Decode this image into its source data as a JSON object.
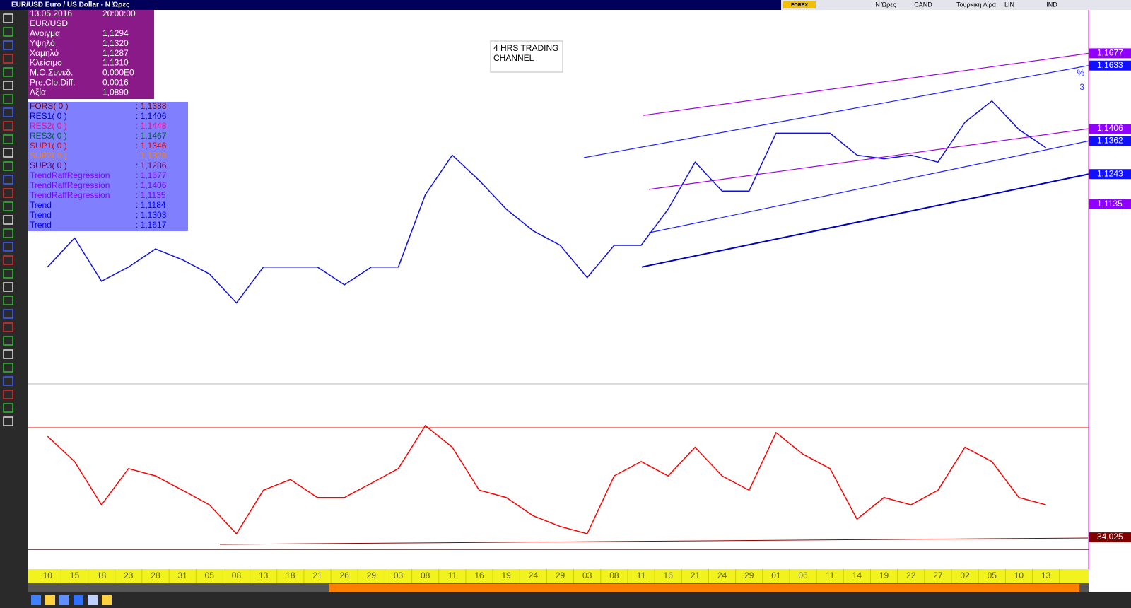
{
  "window": {
    "title": "EUR/USD Euro / US Dollar - Ν Ώρες",
    "logo": "FOREX",
    "toolbar": [
      "Ν Ώρες",
      "CAND",
      "Τουρκική Λίρα",
      "LIN",
      "IND"
    ]
  },
  "info_panel": {
    "date": "13.05.2016",
    "time": "20:00:00",
    "symbol": "EUR/USD",
    "rows": [
      [
        "Ανοιγμα",
        "1,1294"
      ],
      [
        "Υψηλό",
        "1,1320"
      ],
      [
        "Χαμηλό",
        "1,1287"
      ],
      [
        "Κλείσιμο",
        "1,1310"
      ],
      [
        "Μ.Ο.Συνεδ.",
        "0,000E0"
      ],
      [
        "Pre.Clo.Diff.",
        "0,0016"
      ],
      [
        "Αξία",
        "1,0890"
      ]
    ]
  },
  "indicator_panel": {
    "rows": [
      {
        "name": "FORS( 0 )",
        "value": ": 1,1388",
        "color": "#800000"
      },
      {
        "name": "RES1( 0 )",
        "value": ": 1,1406",
        "color": "#0000c0"
      },
      {
        "name": "RES2( 0 )",
        "value": ": 1,1448",
        "color": "#ff0090"
      },
      {
        "name": "RES3( 0 )",
        "value": ": 1,1467",
        "color": "#006030"
      },
      {
        "name": "SUP1( 0 )",
        "value": ": 1,1346",
        "color": "#e00000"
      },
      {
        "name": "SUP2( 0 )",
        "value": ": 1,1328",
        "color": "#ff8000"
      },
      {
        "name": "SUP3( 0 )",
        "value": ": 1,1286",
        "color": "#600060"
      },
      {
        "name": "TrendRaffRegression",
        "value": ": 1,1677",
        "color": "#8000ff"
      },
      {
        "name": "TrendRaffRegression",
        "value": ": 1,1406",
        "color": "#8000ff"
      },
      {
        "name": "TrendRaffRegression",
        "value": ": 1,1135",
        "color": "#8000ff"
      },
      {
        "name": "Trend",
        "value": ": 1,1184",
        "color": "#0000ff"
      },
      {
        "name": "Trend",
        "value": ": 1,1303",
        "color": "#0000ff"
      },
      {
        "name": "Trend",
        "value": ": 1,1617",
        "color": "#0000ff"
      }
    ]
  },
  "annotation": [
    "4 HRS TRADING",
    "CHANNEL"
  ],
  "side_marks": [
    "%",
    "3"
  ],
  "chart_data": [
    {
      "type": "line",
      "color": "#1010e0",
      "categories": [
        "10",
        "15",
        "18",
        "23",
        "28",
        "31",
        "05",
        "08",
        "13",
        "18",
        "21",
        "26",
        "29",
        "03",
        "08",
        "11",
        "16",
        "19",
        "24",
        "29",
        "03",
        "08",
        "11",
        "16",
        "21",
        "24",
        "29",
        "01",
        "06",
        "11",
        "14",
        "19",
        "22",
        "27",
        "02",
        "05",
        "10",
        "13"
      ],
      "values": [
        1.0909,
        1.1013,
        1.0858,
        1.0909,
        1.0974,
        1.0935,
        1.0884,
        1.078,
        1.0909,
        1.0909,
        1.0909,
        1.0845,
        1.0909,
        1.0909,
        1.1169,
        1.1311,
        1.122,
        1.1117,
        1.1039,
        1.0987,
        1.0871,
        1.0987,
        1.0987,
        1.1117,
        1.1286,
        1.1182,
        1.1182,
        1.139,
        1.139,
        1.139,
        1.1311,
        1.1298,
        1.1311,
        1.1286,
        1.1429,
        1.1506,
        1.1403,
        1.1338
      ],
      "ylim": [
        1.0489,
        1.1833
      ],
      "channel_lines": [
        {
          "color": "#a000e0",
          "values": [
            1.1454,
            1.1677
          ]
        },
        {
          "color": "#2020ff",
          "values": [
            1.1302,
            1.1633
          ]
        },
        {
          "color": "#a000e0",
          "values": [
            1.1188,
            1.1406
          ]
        },
        {
          "color": "#2020ff",
          "values": [
            1.1032,
            1.1362
          ]
        },
        {
          "color": "#0000c0",
          "values": [
            1.0909,
            1.1243
          ]
        }
      ],
      "price_labels": [
        {
          "value": 1.1677,
          "label": "1,1677",
          "color": "#9000ff"
        },
        {
          "value": 1.1633,
          "label": "1,1633",
          "color": "#1010ff"
        },
        {
          "value": 1.1406,
          "label": "1,1406",
          "color": "#9000ff"
        },
        {
          "value": 1.1362,
          "label": "1,1362",
          "color": "#1010ff"
        },
        {
          "value": 1.1243,
          "label": "1,1243",
          "color": "#1010ff"
        },
        {
          "value": 1.1135,
          "label": "1,1135",
          "color": "#9000ff"
        }
      ]
    },
    {
      "type": "line",
      "color": "#ff0000",
      "values": [
        67.2,
        58.9,
        44.7,
        56.6,
        54.2,
        49.5,
        44.7,
        35.2,
        49.5,
        53,
        47.1,
        47.1,
        51.8,
        56.6,
        70.7,
        63.6,
        49.5,
        47.1,
        41.1,
        37.6,
        35.2,
        54.2,
        58.9,
        54.2,
        63.6,
        54.2,
        49.5,
        68.4,
        61.3,
        56.6,
        40,
        47.1,
        44.7,
        49.5,
        63.6,
        58.9,
        47.1,
        44.7
      ],
      "ylim": [
        23.6,
        84.4
      ],
      "levels": [
        30,
        70
      ],
      "price_labels": [
        {
          "value": 34.025,
          "label": "34,025",
          "color": "#800000"
        }
      ]
    }
  ]
}
